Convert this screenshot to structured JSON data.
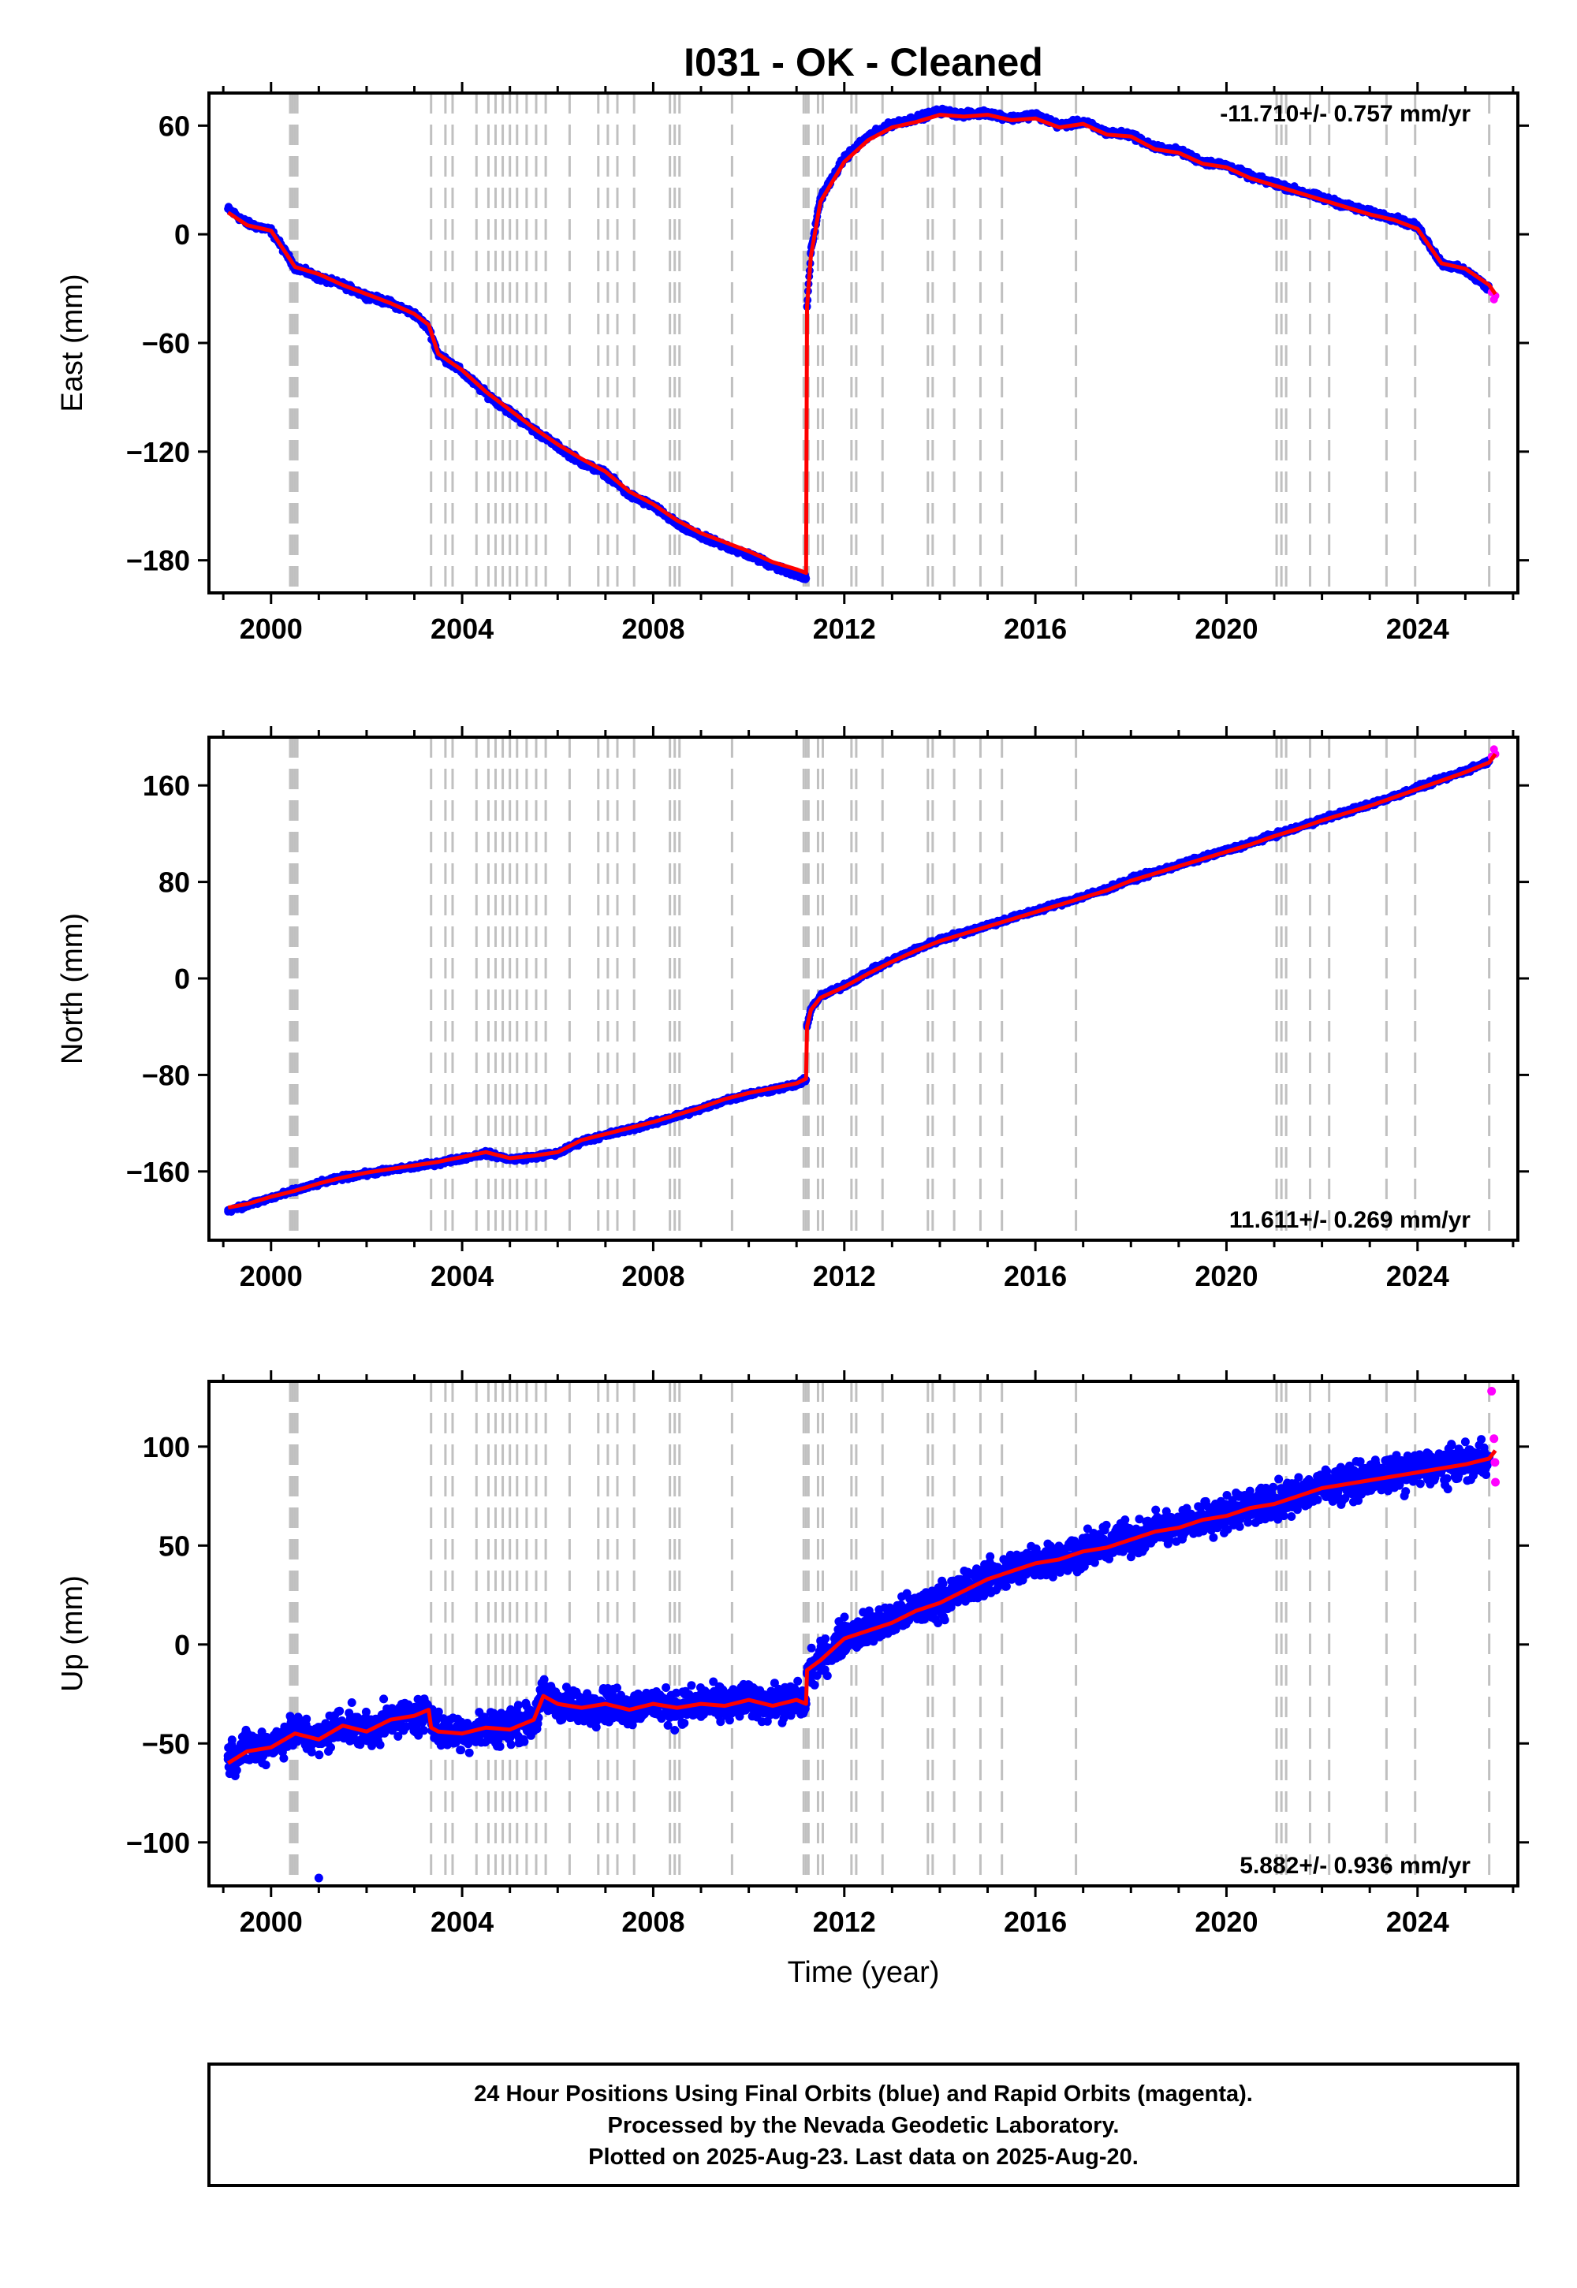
{
  "chart_data": [
    {
      "type": "scatter",
      "title": "I031  - OK - Cleaned",
      "ylabel": "East (mm)",
      "xlabel": "",
      "xlim": [
        1998.7,
        2026.1
      ],
      "ylim": [
        -198,
        78
      ],
      "xticks": [
        2000,
        2004,
        2008,
        2012,
        2016,
        2020,
        2024
      ],
      "yticks": [
        60,
        0,
        -60,
        -120,
        -180
      ],
      "rate_label": "-11.710+/- 0.757 mm/yr",
      "rate_position": "top-right",
      "series": [
        {
          "color": "#0000ff",
          "style": "points",
          "x": [
            1999.1,
            1999.5,
            2000.0,
            2000.5,
            2001.0,
            2001.5,
            2002.0,
            2002.5,
            2003.0,
            2003.3,
            2003.5,
            2004.0,
            2004.5,
            2005.0,
            2005.5,
            2006.0,
            2006.5,
            2007.0,
            2007.5,
            2008.0,
            2008.5,
            2009.0,
            2009.5,
            2010.0,
            2010.5,
            2011.0,
            2011.2
          ],
          "y": [
            14,
            6,
            2,
            -18,
            -24,
            -28,
            -34,
            -38,
            -44,
            -52,
            -66,
            -76,
            -88,
            -98,
            -108,
            -117,
            -126,
            -132,
            -144,
            -150,
            -160,
            -167,
            -172,
            -177,
            -183,
            -188,
            -190
          ]
        },
        {
          "color": "#0000ff",
          "style": "points",
          "x": [
            2011.22,
            2011.3,
            2011.5,
            2012.0,
            2012.5,
            2013.0,
            2013.5,
            2014.0,
            2014.5,
            2015.0,
            2015.5,
            2016.0,
            2016.5,
            2017.0,
            2017.5,
            2018.0,
            2018.5,
            2019.0,
            2019.5,
            2020.0,
            2020.5,
            2021.0,
            2021.5,
            2022.0,
            2022.5,
            2023.0,
            2023.5,
            2024.0,
            2024.5,
            2025.0,
            2025.5
          ],
          "y": [
            -40,
            -10,
            20,
            42,
            54,
            61,
            64,
            68,
            66,
            67,
            64,
            66,
            60,
            62,
            56,
            55,
            48,
            46,
            40,
            38,
            32,
            28,
            24,
            20,
            16,
            12,
            9,
            4,
            -16,
            -20,
            -30
          ]
        },
        {
          "color": "#ff00ff",
          "style": "points",
          "x": [
            2025.55,
            2025.6,
            2025.63
          ],
          "y": [
            -32,
            -36,
            -34
          ]
        },
        {
          "color": "#ff0000",
          "style": "line",
          "x": [
            1999.1,
            1999.5,
            2000.0,
            2000.5,
            2001.0,
            2001.5,
            2002.0,
            2002.5,
            2003.0,
            2003.3,
            2003.5,
            2004.0,
            2004.5,
            2005.0,
            2005.5,
            2006.0,
            2006.5,
            2007.0,
            2007.5,
            2008.0,
            2008.5,
            2009.0,
            2009.5,
            2010.0,
            2010.5,
            2011.0,
            2011.2,
            2011.22,
            2011.3,
            2011.5,
            2012.0,
            2012.5,
            2013.0,
            2013.5,
            2014.0,
            2014.5,
            2015.0,
            2015.5,
            2016.0,
            2016.5,
            2017.0,
            2017.5,
            2018.0,
            2018.5,
            2019.0,
            2019.5,
            2020.0,
            2020.5,
            2021.0,
            2021.5,
            2022.0,
            2022.5,
            2023.0,
            2023.5,
            2024.0,
            2024.5,
            2025.0,
            2025.5,
            2025.63
          ],
          "y": [
            12,
            5,
            2,
            -18,
            -22,
            -28,
            -33,
            -38,
            -44,
            -50,
            -66,
            -75,
            -87,
            -97,
            -107,
            -116,
            -124,
            -131,
            -142,
            -149,
            -158,
            -165,
            -170,
            -175,
            -181,
            -185,
            -187,
            -40,
            -12,
            18,
            40,
            52,
            59,
            62,
            66,
            65,
            66,
            63,
            64,
            59,
            61,
            55,
            54,
            47,
            45,
            39,
            37,
            31,
            27,
            23,
            19,
            15,
            11,
            8,
            3,
            -16,
            -19,
            -28,
            -33
          ]
        }
      ],
      "offset_years": [
        2000.4,
        2000.45,
        2000.5,
        2000.55,
        2003.35,
        2003.65,
        2003.8,
        2004.3,
        2004.55,
        2004.7,
        2004.85,
        2005.0,
        2005.15,
        2005.35,
        2005.55,
        2005.75,
        2006.25,
        2006.85,
        2007.05,
        2007.25,
        2007.6,
        2008.35,
        2008.45,
        2008.55,
        2009.65,
        2011.15,
        2011.2,
        2011.25,
        2011.45,
        2011.55,
        2012.15,
        2012.25,
        2012.8,
        2013.75,
        2013.85,
        2014.3,
        2014.85,
        2015.3,
        2016.85,
        2021.05,
        2021.15,
        2021.25,
        2021.75,
        2022.15,
        2023.35,
        2023.95,
        2025.5
      ]
    },
    {
      "type": "scatter",
      "ylabel": "North (mm)",
      "xlabel": "",
      "xlim": [
        1998.7,
        2026.1
      ],
      "ylim": [
        -217,
        200
      ],
      "xticks": [
        2000,
        2004,
        2008,
        2012,
        2016,
        2020,
        2024
      ],
      "yticks": [
        160,
        80,
        0,
        -80,
        -160
      ],
      "rate_label": "11.611+/- 0.269 mm/yr",
      "rate_position": "bottom-right",
      "series": [
        {
          "color": "#0000ff",
          "style": "points",
          "x": [
            1999.1,
            1999.5,
            2000.0,
            2000.5,
            2001.0,
            2001.5,
            2002.0,
            2002.5,
            2003.0,
            2003.5,
            2004.0,
            2004.5,
            2005.0,
            2005.5,
            2006.0,
            2006.5,
            2007.0,
            2007.5,
            2008.0,
            2008.5,
            2009.0,
            2009.5,
            2010.0,
            2010.5,
            2011.0,
            2011.2
          ],
          "y": [
            -192,
            -188,
            -182,
            -176,
            -170,
            -165,
            -162,
            -159,
            -156,
            -153,
            -149,
            -145,
            -150,
            -148,
            -145,
            -135,
            -130,
            -125,
            -120,
            -114,
            -108,
            -101,
            -96,
            -92,
            -88,
            -84
          ]
        },
        {
          "color": "#0000ff",
          "style": "points",
          "x": [
            2011.22,
            2011.3,
            2011.5,
            2012.0,
            2012.5,
            2013.0,
            2013.5,
            2014.0,
            2014.5,
            2015.0,
            2015.5,
            2016.0,
            2016.5,
            2017.0,
            2017.5,
            2018.0,
            2018.5,
            2019.0,
            2019.5,
            2020.0,
            2020.5,
            2021.0,
            2021.5,
            2022.0,
            2022.5,
            2023.0,
            2023.5,
            2024.0,
            2024.5,
            2025.0,
            2025.5
          ],
          "y": [
            -40,
            -25,
            -15,
            -6,
            5,
            15,
            24,
            32,
            38,
            44,
            50,
            56,
            62,
            68,
            74,
            82,
            88,
            94,
            100,
            106,
            112,
            119,
            125,
            132,
            138,
            144,
            151,
            158,
            165,
            172,
            180
          ]
        },
        {
          "color": "#ff00ff",
          "style": "points",
          "x": [
            2025.55,
            2025.6,
            2025.63
          ],
          "y": [
            184,
            190,
            186
          ]
        },
        {
          "color": "#ff0000",
          "style": "line",
          "x": [
            1999.1,
            1999.5,
            2000.0,
            2000.5,
            2001.0,
            2001.5,
            2002.0,
            2002.5,
            2003.0,
            2003.5,
            2004.0,
            2004.5,
            2005.0,
            2005.5,
            2006.0,
            2006.5,
            2007.0,
            2007.5,
            2008.0,
            2008.5,
            2009.0,
            2009.5,
            2010.0,
            2010.5,
            2011.0,
            2011.2,
            2011.22,
            2011.3,
            2011.5,
            2012.0,
            2012.5,
            2013.0,
            2013.5,
            2014.0,
            2014.5,
            2015.0,
            2015.5,
            2016.0,
            2016.5,
            2017.0,
            2017.5,
            2018.0,
            2018.5,
            2019.0,
            2019.5,
            2020.0,
            2020.5,
            2021.0,
            2021.5,
            2022.0,
            2022.5,
            2023.0,
            2023.5,
            2024.0,
            2024.5,
            2025.0,
            2025.5,
            2025.63
          ],
          "y": [
            -190,
            -187,
            -181,
            -176,
            -170,
            -165,
            -161,
            -158,
            -155,
            -152,
            -148,
            -144,
            -149,
            -147,
            -144,
            -134,
            -129,
            -124,
            -119,
            -113,
            -107,
            -100,
            -95,
            -91,
            -87,
            -83,
            -40,
            -26,
            -16,
            -7,
            4,
            14,
            23,
            31,
            37,
            43,
            49,
            55,
            61,
            67,
            73,
            81,
            87,
            93,
            99,
            105,
            111,
            118,
            124,
            131,
            137,
            143,
            150,
            157,
            164,
            171,
            179,
            186
          ]
        }
      ],
      "offset_years": [
        2000.4,
        2000.45,
        2000.5,
        2000.55,
        2003.35,
        2003.65,
        2003.8,
        2004.3,
        2004.55,
        2004.7,
        2004.85,
        2005.0,
        2005.15,
        2005.35,
        2005.55,
        2005.75,
        2006.25,
        2006.85,
        2007.05,
        2007.25,
        2007.6,
        2008.35,
        2008.45,
        2008.55,
        2009.65,
        2011.15,
        2011.2,
        2011.25,
        2011.45,
        2011.55,
        2012.15,
        2012.25,
        2012.8,
        2013.75,
        2013.85,
        2014.3,
        2014.85,
        2015.3,
        2016.85,
        2021.05,
        2021.15,
        2021.25,
        2021.75,
        2022.15,
        2023.35,
        2023.95,
        2025.5
      ]
    },
    {
      "type": "scatter",
      "ylabel": "Up (mm)",
      "xlabel": "Time (year)",
      "xlim": [
        1998.7,
        2026.1
      ],
      "ylim": [
        -122,
        133
      ],
      "xticks": [
        2000,
        2004,
        2008,
        2012,
        2016,
        2020,
        2024
      ],
      "yticks": [
        100,
        50,
        0,
        -50,
        -100
      ],
      "rate_label": "5.882+/- 0.936 mm/yr",
      "rate_position": "bottom-right",
      "series": [
        {
          "color": "#0000ff",
          "style": "points",
          "x": [
            1999.1,
            1999.5,
            2000.0,
            2000.5,
            2001.0,
            2001.5,
            2002.0,
            2002.5,
            2003.0,
            2003.3,
            2003.5,
            2004.0,
            2004.5,
            2005.0,
            2005.5,
            2005.7,
            2006.0,
            2006.5,
            2007.0,
            2007.5,
            2008.0,
            2008.5,
            2009.0,
            2009.5,
            2010.0,
            2010.5,
            2011.0,
            2011.2,
            2001.0
          ],
          "y": [
            -58,
            -52,
            -50,
            -44,
            -48,
            -40,
            -44,
            -38,
            -36,
            -33,
            -44,
            -45,
            -42,
            -42,
            -38,
            -26,
            -30,
            -32,
            -30,
            -32,
            -30,
            -32,
            -30,
            -30,
            -28,
            -30,
            -28,
            -30,
            -118
          ]
        },
        {
          "color": "#0000ff",
          "style": "points",
          "x": [
            2011.22,
            2011.5,
            2012.0,
            2012.5,
            2013.0,
            2013.5,
            2014.0,
            2014.5,
            2015.0,
            2015.5,
            2016.0,
            2016.5,
            2017.0,
            2017.5,
            2018.0,
            2018.5,
            2019.0,
            2019.5,
            2020.0,
            2020.5,
            2021.0,
            2021.5,
            2022.0,
            2022.5,
            2023.0,
            2023.5,
            2024.0,
            2024.5,
            2025.0,
            2025.5
          ],
          "y": [
            -14,
            -8,
            4,
            8,
            12,
            18,
            22,
            28,
            34,
            38,
            42,
            44,
            48,
            50,
            54,
            58,
            60,
            64,
            66,
            70,
            72,
            76,
            80,
            82,
            84,
            86,
            88,
            90,
            92,
            95
          ]
        },
        {
          "color": "#ff00ff",
          "style": "points",
          "x": [
            2025.55,
            2025.6,
            2025.62,
            2025.63
          ],
          "y": [
            128,
            104,
            92,
            82
          ]
        },
        {
          "color": "#ff0000",
          "style": "line",
          "x": [
            1999.1,
            1999.5,
            2000.0,
            2000.5,
            2001.0,
            2001.5,
            2002.0,
            2002.5,
            2003.0,
            2003.3,
            2003.35,
            2003.5,
            2004.0,
            2004.5,
            2005.0,
            2005.5,
            2005.7,
            2006.0,
            2006.5,
            2007.0,
            2007.5,
            2008.0,
            2008.5,
            2009.0,
            2009.5,
            2010.0,
            2010.5,
            2011.0,
            2011.2,
            2011.22,
            2011.5,
            2012.0,
            2012.5,
            2013.0,
            2013.5,
            2014.0,
            2014.5,
            2015.0,
            2015.5,
            2016.0,
            2016.5,
            2017.0,
            2017.5,
            2018.0,
            2018.5,
            2019.0,
            2019.5,
            2020.0,
            2020.5,
            2021.0,
            2021.5,
            2022.0,
            2022.5,
            2023.0,
            2023.5,
            2024.0,
            2024.5,
            2025.0,
            2025.5,
            2025.63
          ],
          "y": [
            -60,
            -54,
            -52,
            -45,
            -48,
            -41,
            -44,
            -38,
            -36,
            -33,
            -42,
            -44,
            -45,
            -42,
            -43,
            -38,
            -26,
            -30,
            -32,
            -30,
            -33,
            -30,
            -32,
            -30,
            -31,
            -28,
            -31,
            -28,
            -30,
            -13,
            -8,
            3,
            7,
            11,
            17,
            21,
            27,
            33,
            37,
            41,
            43,
            47,
            49,
            53,
            57,
            59,
            63,
            65,
            69,
            71,
            75,
            79,
            81,
            83,
            85,
            87,
            89,
            91,
            94,
            98
          ]
        }
      ],
      "offset_years": [
        2000.4,
        2000.45,
        2000.5,
        2000.55,
        2003.35,
        2003.65,
        2003.8,
        2004.3,
        2004.55,
        2004.7,
        2004.85,
        2005.0,
        2005.15,
        2005.35,
        2005.55,
        2005.75,
        2006.25,
        2006.85,
        2007.05,
        2007.25,
        2007.6,
        2008.35,
        2008.45,
        2008.55,
        2009.65,
        2011.15,
        2011.2,
        2011.25,
        2011.45,
        2011.55,
        2012.15,
        2012.25,
        2012.8,
        2013.75,
        2013.85,
        2014.3,
        2014.85,
        2015.3,
        2016.85,
        2021.05,
        2021.15,
        2021.25,
        2021.75,
        2022.15,
        2023.35,
        2023.95,
        2025.5
      ]
    }
  ],
  "footer": {
    "line1": "24 Hour Positions Using Final Orbits (blue) and Rapid Orbits (magenta).",
    "line2": "Processed by the Nevada Geodetic Laboratory.",
    "line3": "Plotted on 2025-Aug-23. Last data on 2025-Aug-20."
  },
  "colors": {
    "final_orbits": "#0000ff",
    "rapid_orbits": "#ff00ff",
    "model_line": "#ff0000",
    "offset_lines": "#c0c0c0"
  }
}
